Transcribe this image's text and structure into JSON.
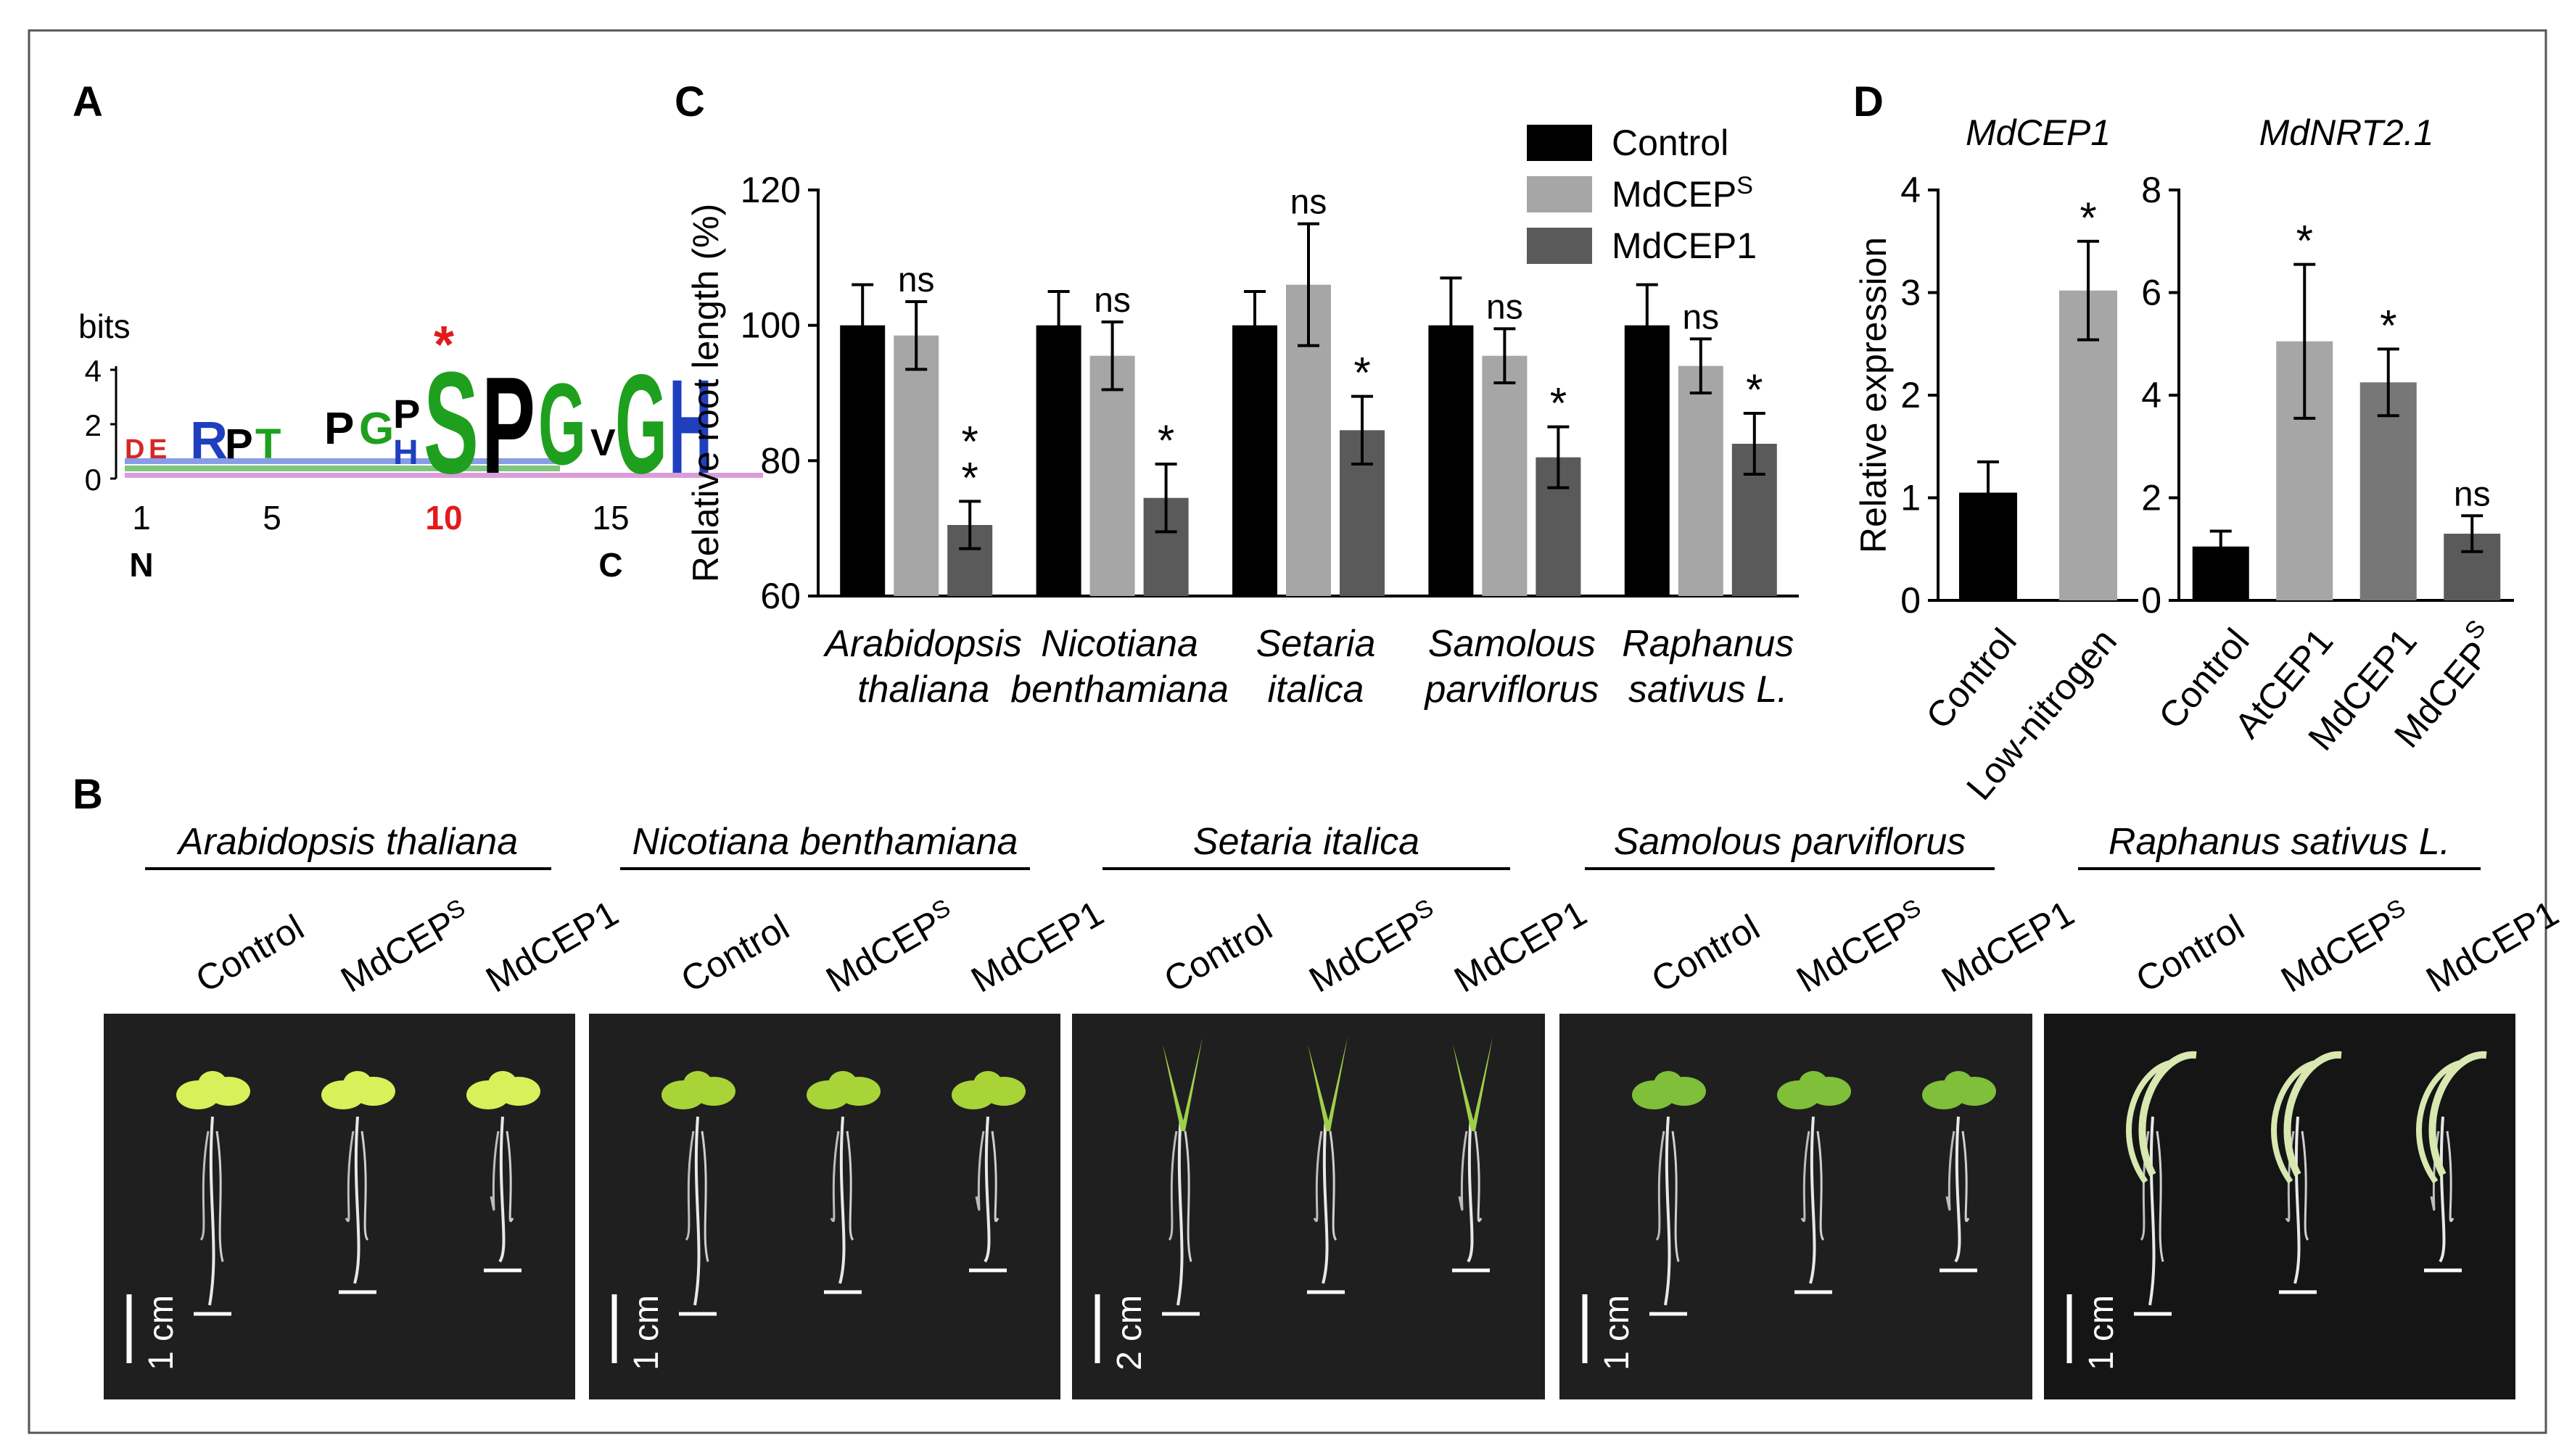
{
  "panels": {
    "a": "A",
    "b": "B",
    "c": "C",
    "d": "D"
  },
  "logo": {
    "ylabel": "bits",
    "yticks": [
      "4",
      "2",
      "0"
    ],
    "xticks": [
      "1",
      "5",
      "10",
      "15"
    ],
    "n_label": "N",
    "c_label": "C",
    "star": "*",
    "highlight_color": "#e31a1c",
    "letters": [
      "D",
      "E",
      "R",
      "P",
      "T",
      "P",
      "G",
      "P",
      "H",
      "S",
      "P",
      "G",
      "V",
      "G",
      "H"
    ]
  },
  "chart_data": [
    {
      "type": "bar",
      "panel": "C",
      "title": "",
      "ylabel": "Relative root length (%)",
      "ylim": [
        60,
        120
      ],
      "yticks": [
        "60",
        "80",
        "100",
        "120"
      ],
      "categories": [
        {
          "line1": "Arabidopsis",
          "line2": "thaliana"
        },
        {
          "line1": "Nicotiana",
          "line2": "benthamiana"
        },
        {
          "line1": "Setaria",
          "line2": "italica"
        },
        {
          "line1": "Samolous",
          "line2": "parviflorus"
        },
        {
          "line1": "Raphanus",
          "line2": "sativus L."
        }
      ],
      "legend": [
        "Control",
        "MdCEP",
        "MdCEP1"
      ],
      "legend_sup": "S",
      "series": [
        {
          "name": "Control",
          "color": "#000000",
          "values": [
            100,
            100,
            100,
            100,
            100
          ],
          "errors": [
            6,
            5,
            5,
            7,
            6
          ],
          "sig": [
            "",
            "",
            "",
            "",
            ""
          ]
        },
        {
          "name": "MdCEPS",
          "color": "#a6a6a6",
          "values": [
            98.5,
            95.5,
            106,
            95.5,
            94
          ],
          "errors": [
            5,
            5,
            9,
            4,
            4
          ],
          "sig": [
            "ns",
            "ns",
            "ns",
            "ns",
            "ns"
          ]
        },
        {
          "name": "MdCEP1",
          "color": "#5a5a5a",
          "values": [
            70.5,
            74.5,
            84.5,
            80.5,
            82.5
          ],
          "errors": [
            3.5,
            5,
            5,
            4.5,
            4.5
          ],
          "sig": [
            "**",
            "*",
            "*",
            "*",
            "*"
          ]
        }
      ]
    },
    {
      "type": "bar",
      "panel": "D",
      "title": "MdCEP1",
      "ylabel": "Relative expression",
      "ylim": [
        0,
        4
      ],
      "yticks": [
        "0",
        "1",
        "2",
        "3",
        "4"
      ],
      "categories": [
        "Control",
        "Low-nitrogen"
      ],
      "values": [
        1.05,
        3.02
      ],
      "errors": [
        0.3,
        0.48
      ],
      "colors": [
        "#000000",
        "#a6a6a6"
      ],
      "sig": [
        "",
        "*"
      ]
    },
    {
      "type": "bar",
      "panel": "D",
      "title": "MdNRT2.1",
      "ylim": [
        0,
        8
      ],
      "yticks": [
        "0",
        "2",
        "4",
        "6",
        "8"
      ],
      "categories": [
        "Control",
        "AtCEP1",
        "MdCEP1",
        "MdCEP"
      ],
      "cat_sup": [
        "",
        "",
        "",
        "S"
      ],
      "values": [
        1.05,
        5.05,
        4.25,
        1.3
      ],
      "errors": [
        0.3,
        1.5,
        0.65,
        0.35
      ],
      "colors": [
        "#000000",
        "#a6a6a6",
        "#777777",
        "#5a5a5a"
      ],
      "sig": [
        "",
        "*",
        "*",
        "ns"
      ]
    }
  ],
  "photos": {
    "groups": [
      {
        "species": "Arabidopsis thaliana",
        "scale": "1 cm"
      },
      {
        "species": "Nicotiana benthamiana",
        "scale": "1 cm"
      },
      {
        "species": "Setaria italica",
        "scale": "2 cm"
      },
      {
        "species": "Samolous parviflorus",
        "scale": "1 cm"
      },
      {
        "species": "Raphanus sativus L.",
        "scale": "1 cm"
      }
    ],
    "treatments": [
      "Control",
      "MdCEP",
      "MdCEP1"
    ],
    "treatment_sup": "S"
  }
}
